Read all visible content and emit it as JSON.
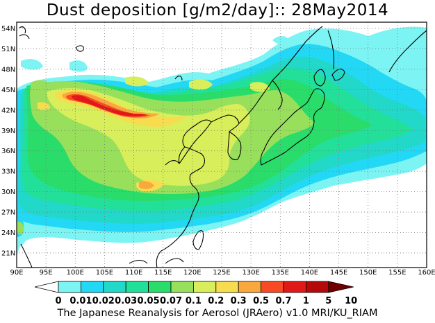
{
  "title": "Dust deposition [g/m2/day]:: 28May2014",
  "caption": "The Japanese Reanalysis for Aerosol (JRAero) v1.0 MRI/KU_RIAM",
  "map": {
    "lon_labels": [
      "90E",
      "95E",
      "100E",
      "105E",
      "110E",
      "115E",
      "120E",
      "125E",
      "130E",
      "135E",
      "140E",
      "145E",
      "150E",
      "155E",
      "160E"
    ],
    "lat_labels": [
      "54N",
      "51N",
      "48N",
      "45N",
      "42N",
      "39N",
      "36N",
      "33N",
      "30N",
      "27N",
      "24N",
      "21N"
    ]
  },
  "colorbar": {
    "labels": [
      "0",
      "0.01",
      "0.02",
      "0.03",
      "0.05",
      "0.07",
      "0.1",
      "0.2",
      "0.3",
      "0.5",
      "0.7",
      "1",
      "5",
      "10"
    ],
    "colors": [
      "#ffffff",
      "#7df4f4",
      "#22d8f4",
      "#22d8c8",
      "#22e09a",
      "#2adc6a",
      "#98e05c",
      "#d8ee5a",
      "#f8dc50",
      "#f8a83c",
      "#f84a24",
      "#e01818",
      "#b40a0a",
      "#700000"
    ]
  }
}
